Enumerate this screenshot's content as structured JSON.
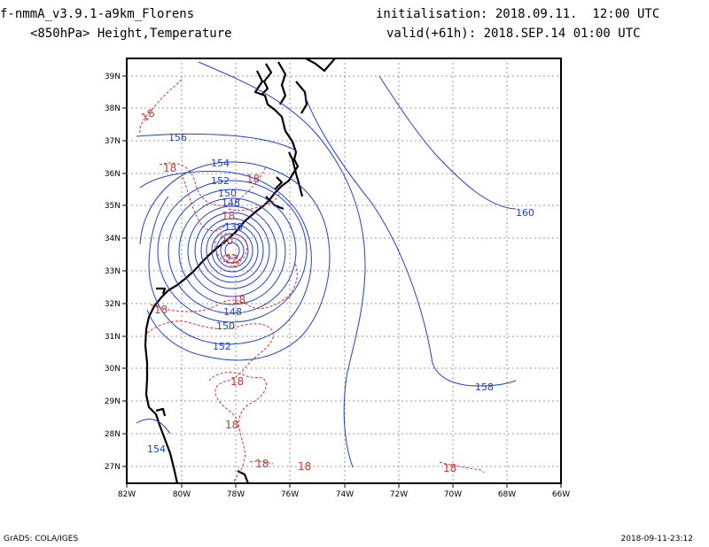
{
  "header": {
    "model": "f-nmmA_v3.9.1-a9km_Florens",
    "field": "<850hPa> Height,Temperature",
    "init": "initialisation: 2018.09.11.  12:00 UTC",
    "valid": "valid(+61h): 2018.SEP.14 01:00 UTC"
  },
  "footer": {
    "left": "GrADS: COLA/IGES",
    "right": "2018-09-11-23:12"
  },
  "map": {
    "lat_labels": [
      "39N",
      "38N",
      "37N",
      "36N",
      "35N",
      "34N",
      "33N",
      "32N",
      "31N",
      "30N",
      "29N",
      "28N",
      "27N"
    ],
    "lon_labels": [
      "82W",
      "80W",
      "78W",
      "76W",
      "74W",
      "72W",
      "70W",
      "68W",
      "66W"
    ],
    "height_color": "#2040d0",
    "temperature_color": "#e03030",
    "height_labels": [
      "156",
      "154",
      "152",
      "150",
      "148",
      "138",
      "148",
      "150",
      "152",
      "158",
      "160",
      "154"
    ],
    "temperature_labels": [
      "18",
      "18",
      "18",
      "18",
      "20",
      "22",
      "18",
      "18",
      "18",
      "18",
      "18",
      "18",
      "18"
    ]
  }
}
